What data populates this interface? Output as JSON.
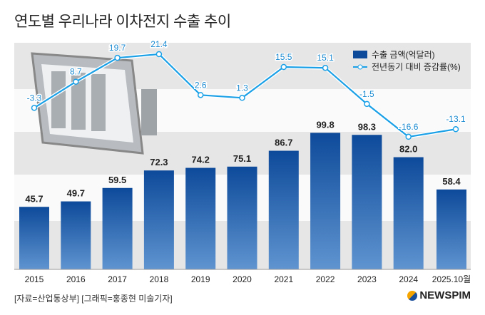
{
  "chart_data": {
    "type": "bar+line",
    "title": "연도별 우리나라 이차전지 수출 추이",
    "categories": [
      "2015",
      "2016",
      "2017",
      "2018",
      "2019",
      "2020",
      "2021",
      "2022",
      "2023",
      "2024",
      "2025.10월"
    ],
    "series": [
      {
        "name": "수출 금액(억달러)",
        "type": "bar",
        "color": "#0d4a9a",
        "values": [
          45.7,
          49.7,
          59.5,
          72.3,
          74.2,
          75.1,
          86.7,
          99.8,
          98.3,
          82.0,
          58.4
        ],
        "labels": [
          "45.7",
          "49.7",
          "59.5",
          "72.3",
          "74.2",
          "75.1",
          "86.7",
          "99.8",
          "98.3",
          "82.0",
          "58.4"
        ]
      },
      {
        "name": "전년동기 대비 증감률(%)",
        "type": "line",
        "color": "#1aa0e6",
        "values": [
          -3.3,
          8.7,
          19.7,
          21.4,
          2.6,
          1.3,
          15.5,
          15.1,
          -1.5,
          -16.6,
          -13.1
        ],
        "labels": [
          "-3.3",
          "8.7",
          "19.7",
          "21.4",
          "2.6",
          "1.3",
          "15.5",
          "15.1",
          "-1.5",
          "-16.6",
          "-13.1"
        ]
      }
    ],
    "legend": "top-right"
  },
  "footer": {
    "source": "[자료=산업통상부] [그래픽=홍종현 미술기자]",
    "logo": "NEWSPIM"
  }
}
